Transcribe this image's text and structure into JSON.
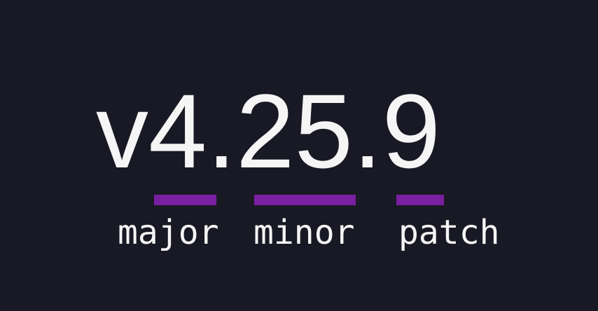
{
  "version_banner": {
    "version": "v4.25.9",
    "prefix": "v",
    "segments": [
      {
        "digits": "4",
        "label": "major"
      },
      {
        "digits": "25",
        "label": "minor"
      },
      {
        "digits": "9",
        "label": "patch"
      }
    ]
  },
  "colors": {
    "background": "#181924",
    "text": "#f5f5f5",
    "accent": "#7b1fa2"
  }
}
